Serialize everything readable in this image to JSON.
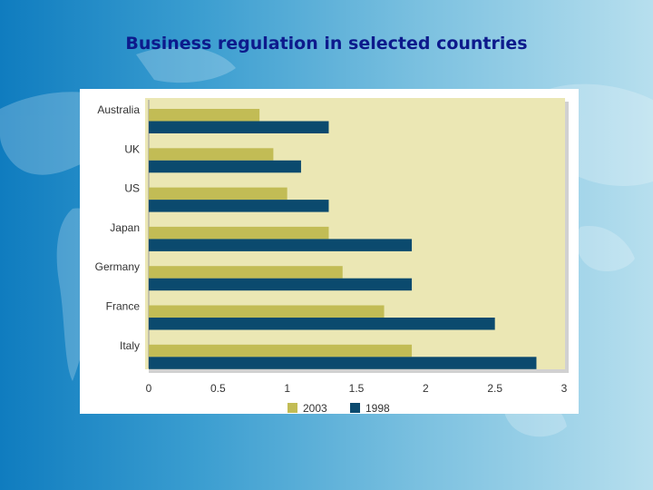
{
  "slide": {
    "title": "Business regulation in selected countries"
  },
  "colors": {
    "series_2003": "#c2bc55",
    "series_1998": "#0b4a6e",
    "plot_background": "#ebe7b4"
  },
  "chart_data": {
    "type": "bar",
    "orientation": "horizontal",
    "categories": [
      "Australia",
      "UK",
      "US",
      "Japan",
      "Germany",
      "France",
      "Italy"
    ],
    "series": [
      {
        "name": "2003",
        "values": [
          0.8,
          0.9,
          1.0,
          1.3,
          1.4,
          1.7,
          1.9
        ]
      },
      {
        "name": "1998",
        "values": [
          1.3,
          1.1,
          1.3,
          1.9,
          1.9,
          2.5,
          2.8
        ]
      }
    ],
    "x_ticks": [
      "0",
      "0.5",
      "1",
      "1.5",
      "2",
      "2.5",
      "3"
    ],
    "xlim": [
      0,
      3
    ],
    "grid": false,
    "legend_position": "bottom"
  }
}
